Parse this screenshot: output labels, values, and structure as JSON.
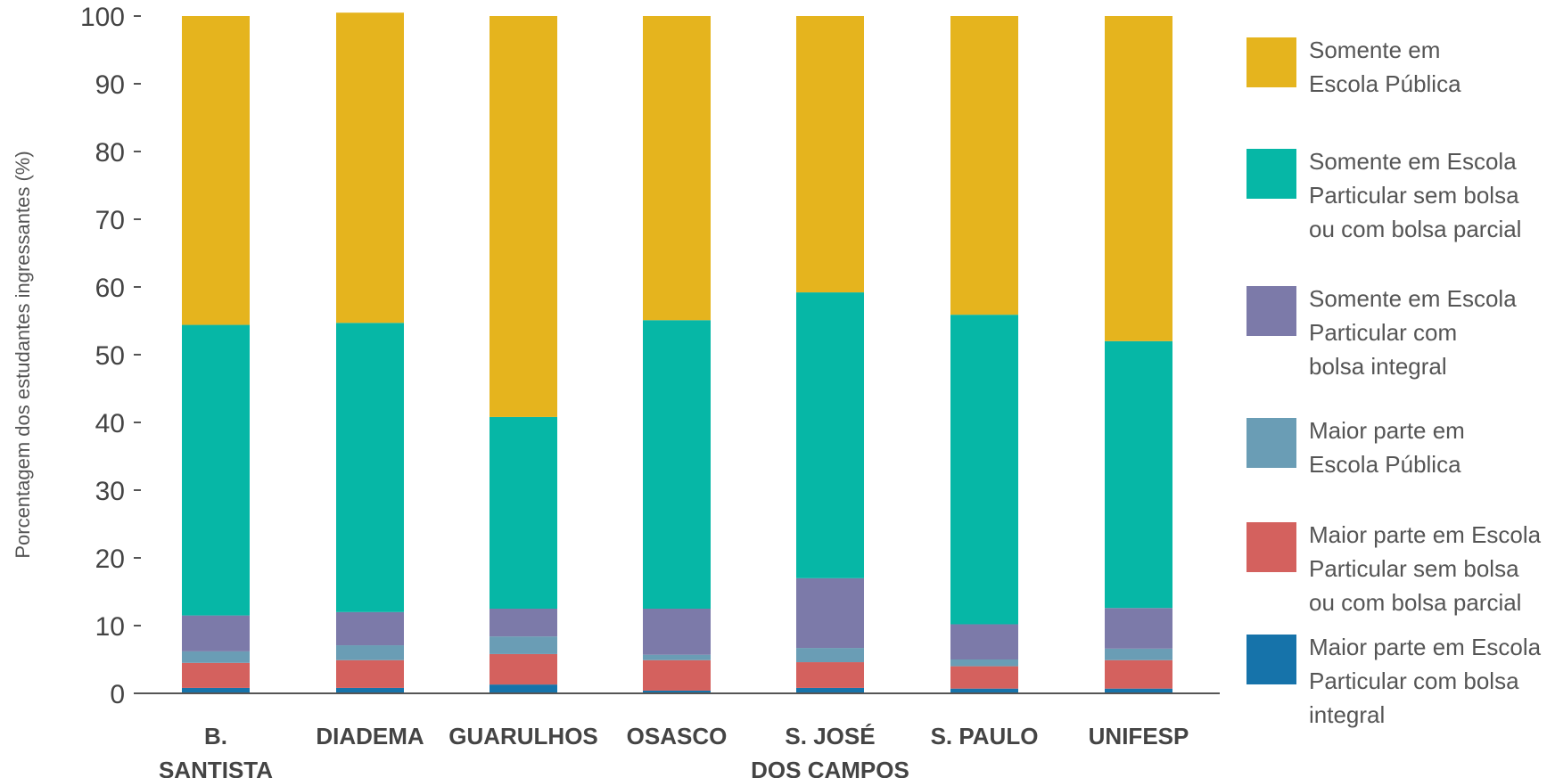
{
  "chart_data": {
    "type": "bar",
    "stacked": true,
    "title": "",
    "xlabel": "",
    "ylabel": "Porcentagem dos estudantes ingressantes (%)",
    "ylim": [
      0,
      100
    ],
    "yticks": [
      "0",
      "10",
      "20",
      "30",
      "40",
      "50",
      "60",
      "70",
      "80",
      "90",
      "100"
    ],
    "categories": [
      [
        "B.",
        "SANTISTA"
      ],
      [
        "DIADEMA"
      ],
      [
        "GUARULHOS"
      ],
      [
        "OSASCO"
      ],
      [
        "S. JOSÉ",
        "DOS CAMPOS"
      ],
      [
        "S. PAULO"
      ],
      [
        "UNIFESP"
      ]
    ],
    "legend_position": "right",
    "grid": false,
    "series": [
      {
        "name": "Maior parte em Escola Particular com bolsa integral",
        "legend_lines": [
          "Maior parte em Escola",
          "Particular com bolsa",
          "integral"
        ],
        "color": "#1673aa",
        "values": [
          0.8,
          0.8,
          1.3,
          0.4,
          0.8,
          0.7,
          0.7
        ]
      },
      {
        "name": "Maior parte em Escola Particular sem bolsa ou com bolsa parcial",
        "legend_lines": [
          "Maior parte em Escola",
          "Particular sem bolsa",
          "ou com bolsa parcial"
        ],
        "color": "#d4615e",
        "values": [
          3.7,
          4.1,
          4.5,
          4.5,
          3.8,
          3.3,
          4.2
        ]
      },
      {
        "name": "Maior parte em Escola Pública",
        "legend_lines": [
          "Maior parte em",
          "Escola Pública"
        ],
        "color": "#6a9db5",
        "values": [
          1.7,
          2.2,
          2.6,
          0.8,
          2.1,
          1.0,
          1.7
        ]
      },
      {
        "name": "Somente em Escola Particular com bolsa integral",
        "legend_lines": [
          "Somente em Escola",
          "Particular com",
          "bolsa integral"
        ],
        "color": "#7c7aa9",
        "values": [
          5.3,
          4.9,
          4.1,
          6.8,
          10.3,
          5.2,
          6.0
        ]
      },
      {
        "name": "Somente em Escola Particular sem bolsa ou com bolsa parcial",
        "legend_lines": [
          "Somente em Escola",
          "Particular sem bolsa",
          "ou com bolsa parcial"
        ],
        "color": "#06b7a6",
        "values": [
          42.9,
          42.7,
          28.3,
          42.6,
          42.2,
          45.7,
          39.4
        ]
      },
      {
        "name": "Somente em Escola Pública",
        "legend_lines": [
          "Somente em",
          "Escola Pública"
        ],
        "color": "#e5b41e",
        "values": [
          45.6,
          45.8,
          59.2,
          44.9,
          40.8,
          44.1,
          48.0
        ]
      }
    ]
  }
}
